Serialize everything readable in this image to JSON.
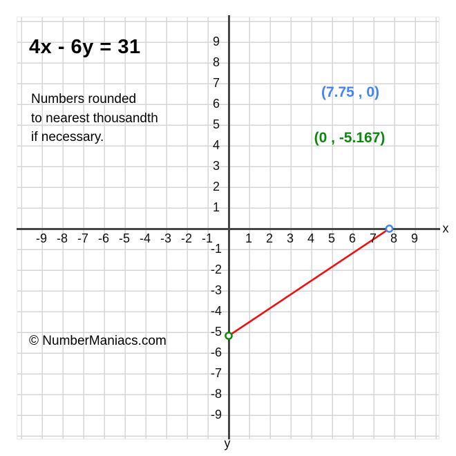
{
  "title": "4x - 6y = 31",
  "note": {
    "lines": [
      "Numbers rounded",
      "to nearest thousandth",
      "if necessary."
    ]
  },
  "intercept_labels": {
    "x_intercept": "(7.75 , 0)",
    "y_intercept": "(0 , -5.167)"
  },
  "axis_letters": {
    "x": "x",
    "y": "y"
  },
  "watermark": "© NumberManiacs.com",
  "colors": {
    "grid": "#d6d6d6",
    "plot_border": "#e9e9e9",
    "axis": "#454545",
    "line": "#f01010",
    "x_intercept": "#4285f4",
    "y_intercept": "#0e870e"
  },
  "chart_data": {
    "type": "line",
    "equation": "4x - 6y = 31",
    "title": "4x - 6y = 31",
    "xlabel": "x",
    "ylabel": "y",
    "xlim": [
      -10.2,
      10.2
    ],
    "ylim": [
      -10.2,
      10.2
    ],
    "grid": true,
    "unit_per_gridline": 1,
    "x_ticks": [
      -9,
      -8,
      -7,
      -6,
      -5,
      -4,
      -3,
      -2,
      -1,
      1,
      2,
      3,
      4,
      5,
      6,
      7,
      8,
      9
    ],
    "y_ticks": [
      -9,
      -8,
      -7,
      -6,
      -5,
      -4,
      -3,
      -2,
      -1,
      1,
      2,
      3,
      4,
      5,
      6,
      7,
      8,
      9
    ],
    "x_intercept": 7.75,
    "y_intercept": -5.167,
    "segment": {
      "from": {
        "x": 0,
        "y": -5.167,
        "point_color": "#0e870e"
      },
      "to": {
        "x": 7.75,
        "y": 0,
        "point_color": "#4285f4"
      },
      "color": "#f01010"
    }
  }
}
